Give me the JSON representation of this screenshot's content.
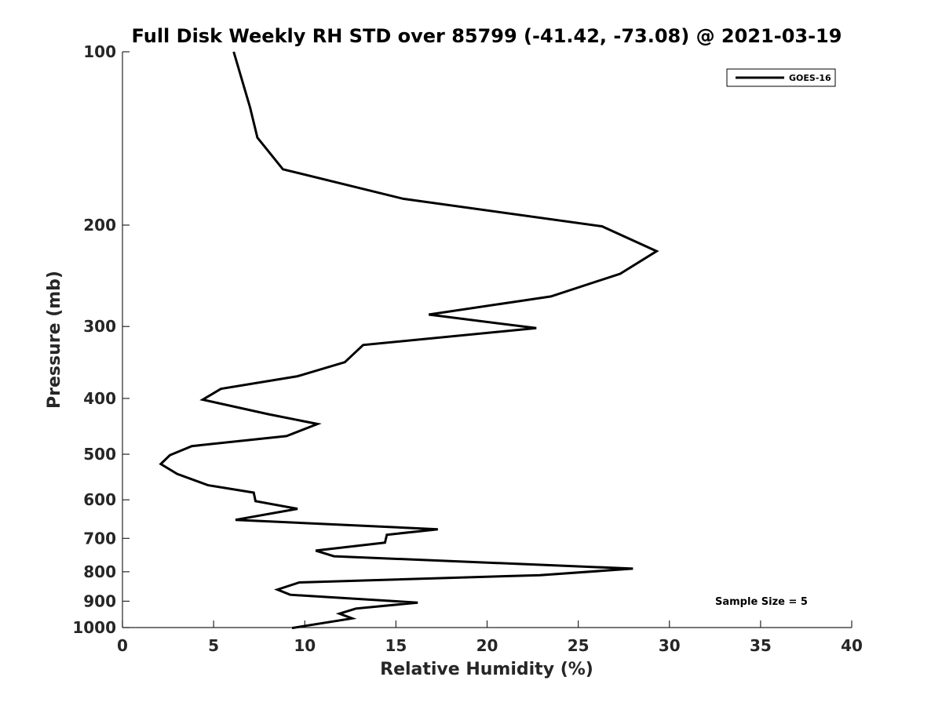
{
  "chart_data": {
    "type": "line",
    "title": "Full Disk Weekly RH STD over 85799 (-41.42, -73.08) @ 2021-03-19",
    "xlabel": "Relative Humidity (%)",
    "ylabel": "Pressure (mb)",
    "xlim": [
      0,
      40
    ],
    "ylim": [
      100,
      1000
    ],
    "yscale": "log",
    "xticks": [
      0,
      5,
      10,
      15,
      20,
      25,
      30,
      35,
      40
    ],
    "xtick_labels": [
      "0",
      "5",
      "10",
      "15",
      "20",
      "25",
      "30",
      "35",
      "40"
    ],
    "yticks": [
      100,
      200,
      300,
      400,
      500,
      600,
      700,
      800,
      900,
      1000
    ],
    "ytick_labels": [
      "100",
      "200",
      "300",
      "400",
      "500",
      "600",
      "700",
      "800",
      "900",
      "1000"
    ],
    "legend_position": "top-right",
    "annotation": "Sample Size = 5",
    "series": [
      {
        "name": "GOES-16",
        "color": "#000000",
        "x": [
          6.1,
          7.0,
          7.4,
          8.8,
          15.4,
          26.3,
          29.3,
          27.3,
          23.5,
          16.8,
          22.7,
          13.2,
          12.2,
          9.6,
          5.4,
          4.4,
          8.0,
          10.7,
          9.0,
          3.8,
          2.6,
          2.1,
          3.0,
          4.7,
          7.2,
          7.3,
          9.6,
          6.2,
          17.3,
          14.5,
          14.4,
          10.6,
          11.6,
          28.0,
          22.9,
          9.7,
          8.5,
          9.2,
          16.2,
          12.8,
          11.9,
          12.6,
          9.3
        ],
        "y": [
          100,
          125,
          141,
          160,
          180,
          201,
          222,
          243,
          266,
          286,
          302,
          323,
          346,
          366,
          385,
          402,
          426,
          443,
          465,
          484,
          502,
          520,
          541,
          566,
          583,
          603,
          622,
          650,
          675,
          690,
          712,
          735,
          752,
          790,
          811,
          835,
          859,
          877,
          905,
          927,
          946,
          964,
          1002
        ]
      }
    ]
  }
}
